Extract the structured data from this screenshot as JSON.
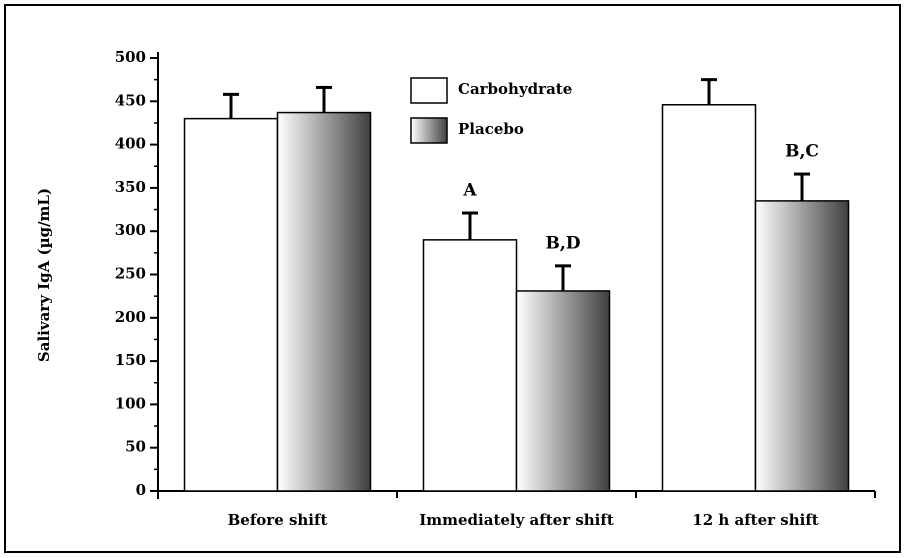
{
  "chart_data": {
    "type": "bar",
    "ylabel": "Salivary IgA (µg/mL)",
    "categories": [
      "Before shift",
      "Immediately after shift",
      "12 h after shift"
    ],
    "series": [
      {
        "name": "Carbohydrate",
        "color": "#ffffff",
        "values": [
          430,
          290,
          446
        ],
        "errors": [
          28,
          31,
          29
        ]
      },
      {
        "name": "Placebo",
        "color": "#404040",
        "gradient": true,
        "values": [
          437,
          231,
          335
        ],
        "errors": [
          29,
          29,
          31
        ]
      }
    ],
    "annotations": [
      {
        "text": "A",
        "series": 0,
        "category": 1
      },
      {
        "text": "B,D",
        "series": 1,
        "category": 1
      },
      {
        "text": "B,C",
        "series": 1,
        "category": 2
      }
    ],
    "ylim": [
      0,
      500
    ],
    "yticks": [
      0,
      50,
      100,
      150,
      200,
      250,
      300,
      350,
      400,
      450,
      500
    ],
    "yminorticks": [
      25,
      75,
      125,
      175,
      225,
      275,
      325,
      375,
      425,
      475
    ],
    "grid": false
  }
}
